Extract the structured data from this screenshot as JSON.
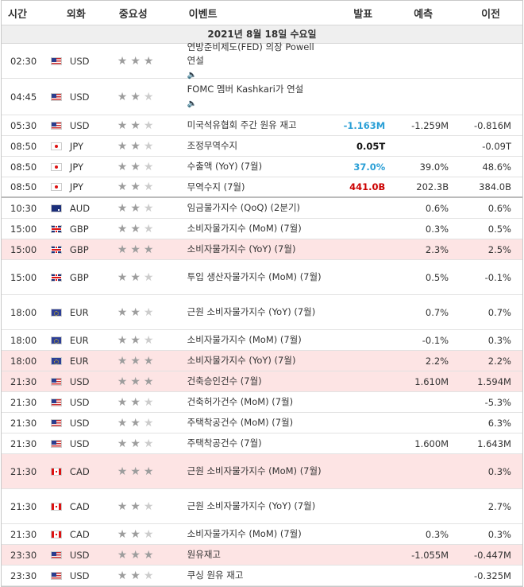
{
  "header": {
    "time": "시간",
    "currency": "외화",
    "importance": "중요성",
    "event": "이벤트",
    "actual": "발표",
    "forecast": "예측",
    "previous": "이전"
  },
  "date_label": "2021년 8월 18일 수요일",
  "rows": [
    {
      "time": "02:30",
      "flag": "us-flag-icon",
      "cur": "USD",
      "stars": 3,
      "event": "연방준비제도(FED) 의장 Powell 연설",
      "sound": true,
      "actual": "",
      "actual_color": "",
      "forecast": "",
      "previous": "",
      "hl": false,
      "h": 44,
      "sep": false
    },
    {
      "time": "04:45",
      "flag": "us-flag-icon",
      "cur": "USD",
      "stars": 2,
      "event": "FOMC 멤버 Kashkari가 연설",
      "sound": true,
      "actual": "",
      "actual_color": "",
      "forecast": "",
      "previous": "",
      "hl": false,
      "h": 46,
      "sep": false
    },
    {
      "time": "05:30",
      "flag": "us-flag-icon",
      "cur": "USD",
      "stars": 2,
      "event": "미국석유협회 주간 원유 재고",
      "sound": false,
      "actual": "-1.163M",
      "actual_color": "blue",
      "forecast": "-1.259M",
      "previous": "-0.816M",
      "hl": false,
      "h": 26,
      "sep": false
    },
    {
      "time": "08:50",
      "flag": "jp-flag-icon",
      "cur": "JPY",
      "stars": 2,
      "event": "조정무역수지",
      "sound": false,
      "actual": "0.05T",
      "actual_color": "black",
      "forecast": "",
      "previous": "-0.09T",
      "hl": false,
      "h": 26,
      "sep": false
    },
    {
      "time": "08:50",
      "flag": "jp-flag-icon",
      "cur": "JPY",
      "stars": 2,
      "event": "수출액 (YoY) (7월)",
      "sound": false,
      "actual": "37.0%",
      "actual_color": "blue",
      "forecast": "39.0%",
      "previous": "48.6%",
      "hl": false,
      "h": 26,
      "sep": false
    },
    {
      "time": "08:50",
      "flag": "jp-flag-icon",
      "cur": "JPY",
      "stars": 2,
      "event": "무역수지 (7월)",
      "sound": false,
      "actual": "441.0B",
      "actual_color": "red",
      "forecast": "202.3B",
      "previous": "384.0B",
      "hl": false,
      "h": 26,
      "sep": true
    },
    {
      "time": "10:30",
      "flag": "au-flag-icon",
      "cur": "AUD",
      "stars": 2,
      "event": "임금물가지수 (QoQ) (2분기)",
      "sound": false,
      "actual": "",
      "actual_color": "",
      "forecast": "0.6%",
      "previous": "0.6%",
      "hl": false,
      "h": 26,
      "sep": false
    },
    {
      "time": "15:00",
      "flag": "gb-flag-icon",
      "cur": "GBP",
      "stars": 2,
      "event": "소비자물가지수 (MoM) (7월)",
      "sound": false,
      "actual": "",
      "actual_color": "",
      "forecast": "0.3%",
      "previous": "0.5%",
      "hl": false,
      "h": 26,
      "sep": false
    },
    {
      "time": "15:00",
      "flag": "gb-flag-icon",
      "cur": "GBP",
      "stars": 3,
      "event": "소비자물가지수 (YoY) (7월)",
      "sound": false,
      "actual": "",
      "actual_color": "",
      "forecast": "2.3%",
      "previous": "2.5%",
      "hl": true,
      "h": 26,
      "sep": false
    },
    {
      "time": "15:00",
      "flag": "gb-flag-icon",
      "cur": "GBP",
      "stars": 2,
      "event": "투입 생산자물가지수 (MoM) (7월)",
      "sound": false,
      "actual": "",
      "actual_color": "",
      "forecast": "0.5%",
      "previous": "-0.1%",
      "hl": false,
      "h": 44,
      "sep": false
    },
    {
      "time": "18:00",
      "flag": "eu-flag-icon",
      "cur": "EUR",
      "stars": 2,
      "event": "근원 소비자물가지수 (YoY) (7월)",
      "sound": false,
      "actual": "",
      "actual_color": "",
      "forecast": "0.7%",
      "previous": "0.7%",
      "hl": false,
      "h": 44,
      "sep": false
    },
    {
      "time": "18:00",
      "flag": "eu-flag-icon",
      "cur": "EUR",
      "stars": 2,
      "event": "소비자물가지수 (MoM) (7월)",
      "sound": false,
      "actual": "",
      "actual_color": "",
      "forecast": "-0.1%",
      "previous": "0.3%",
      "hl": false,
      "h": 26,
      "sep": false
    },
    {
      "time": "18:00",
      "flag": "eu-flag-icon",
      "cur": "EUR",
      "stars": 3,
      "event": "소비자물가지수 (YoY) (7월)",
      "sound": false,
      "actual": "",
      "actual_color": "",
      "forecast": "2.2%",
      "previous": "2.2%",
      "hl": true,
      "h": 26,
      "sep": false
    },
    {
      "time": "21:30",
      "flag": "us-flag-icon",
      "cur": "USD",
      "stars": 3,
      "event": "건축승인건수 (7월)",
      "sound": false,
      "actual": "",
      "actual_color": "",
      "forecast": "1.610M",
      "previous": "1.594M",
      "hl": true,
      "h": 26,
      "sep": false
    },
    {
      "time": "21:30",
      "flag": "us-flag-icon",
      "cur": "USD",
      "stars": 2,
      "event": "건축허가건수 (MoM) (7월)",
      "sound": false,
      "actual": "",
      "actual_color": "",
      "forecast": "",
      "previous": "-5.3%",
      "hl": false,
      "h": 26,
      "sep": false
    },
    {
      "time": "21:30",
      "flag": "us-flag-icon",
      "cur": "USD",
      "stars": 2,
      "event": "주택착공건수 (MoM) (7월)",
      "sound": false,
      "actual": "",
      "actual_color": "",
      "forecast": "",
      "previous": "6.3%",
      "hl": false,
      "h": 26,
      "sep": false
    },
    {
      "time": "21:30",
      "flag": "us-flag-icon",
      "cur": "USD",
      "stars": 2,
      "event": "주택착공건수 (7월)",
      "sound": false,
      "actual": "",
      "actual_color": "",
      "forecast": "1.600M",
      "previous": "1.643M",
      "hl": false,
      "h": 26,
      "sep": false
    },
    {
      "time": "21:30",
      "flag": "ca-flag-icon",
      "cur": "CAD",
      "stars": 3,
      "event": "근원 소비자물가지수 (MoM) (7월)",
      "sound": false,
      "actual": "",
      "actual_color": "",
      "forecast": "",
      "previous": "0.3%",
      "hl": true,
      "h": 44,
      "sep": false
    },
    {
      "time": "21:30",
      "flag": "ca-flag-icon",
      "cur": "CAD",
      "stars": 2,
      "event": "근원 소비자물가지수 (YoY) (7월)",
      "sound": false,
      "actual": "",
      "actual_color": "",
      "forecast": "",
      "previous": "2.7%",
      "hl": false,
      "h": 44,
      "sep": false
    },
    {
      "time": "21:30",
      "flag": "ca-flag-icon",
      "cur": "CAD",
      "stars": 2,
      "event": "소비자물가지수 (MoM) (7월)",
      "sound": false,
      "actual": "",
      "actual_color": "",
      "forecast": "0.3%",
      "previous": "0.3%",
      "hl": false,
      "h": 26,
      "sep": false
    },
    {
      "time": "23:30",
      "flag": "us-flag-icon",
      "cur": "USD",
      "stars": 3,
      "event": "원유재고",
      "sound": false,
      "actual": "",
      "actual_color": "",
      "forecast": "-1.055M",
      "previous": "-0.447M",
      "hl": true,
      "h": 26,
      "sep": false
    },
    {
      "time": "23:30",
      "flag": "us-flag-icon",
      "cur": "USD",
      "stars": 2,
      "event": "쿠싱 원유 재고",
      "sound": false,
      "actual": "",
      "actual_color": "",
      "forecast": "",
      "previous": "-0.325M",
      "hl": false,
      "h": 26,
      "sep": false
    }
  ]
}
